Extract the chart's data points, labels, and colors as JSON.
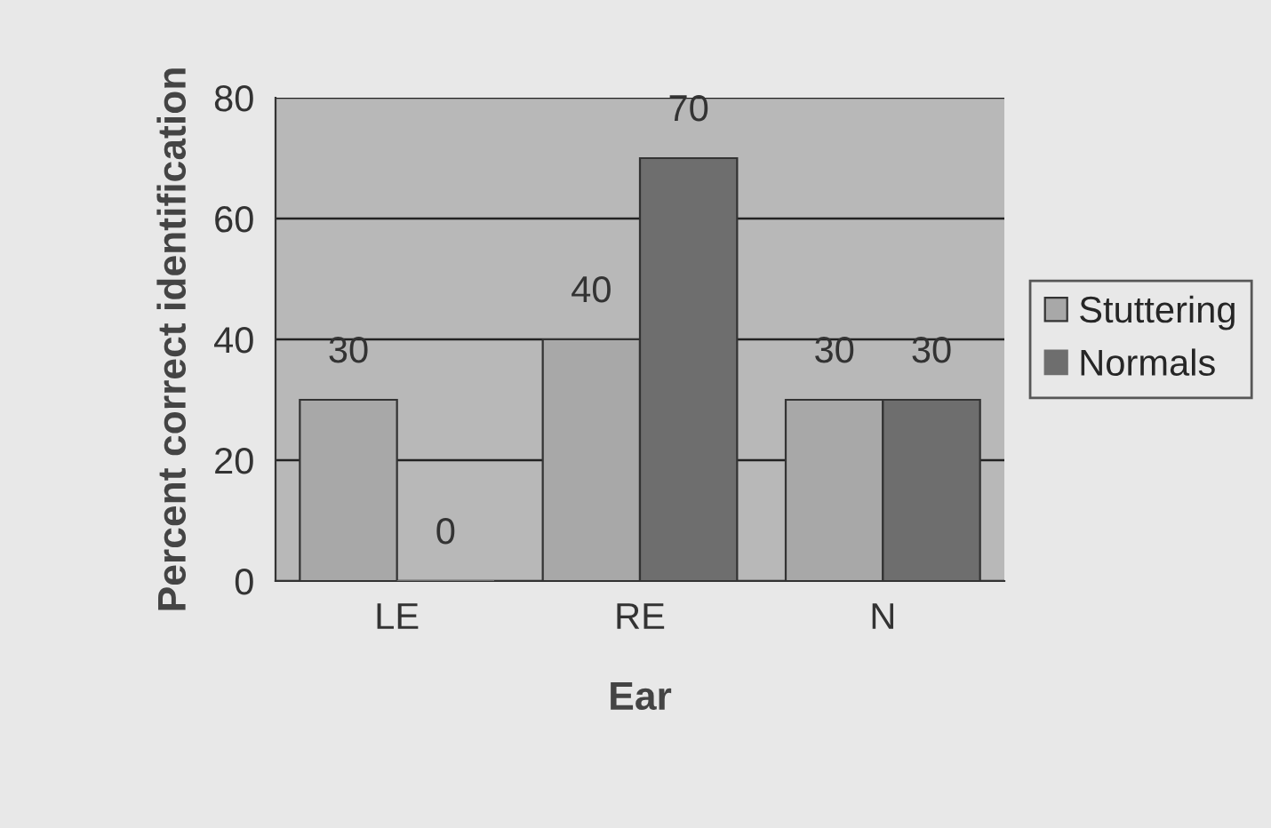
{
  "chart_data": {
    "type": "bar",
    "xlabel": "Ear",
    "ylabel": "Percent correct identification",
    "categories": [
      "LE",
      "RE",
      "N"
    ],
    "series": [
      {
        "name": "Stuttering",
        "color": "#a8a8a8",
        "values": [
          30,
          40,
          30
        ]
      },
      {
        "name": "Normals",
        "color": "#6e6e6e",
        "values": [
          0,
          70,
          30
        ]
      }
    ],
    "ylim": [
      0,
      80
    ],
    "yticks": [
      0,
      20,
      40,
      60,
      80
    ],
    "grid": "y",
    "legend": "right",
    "data_labels": true
  }
}
